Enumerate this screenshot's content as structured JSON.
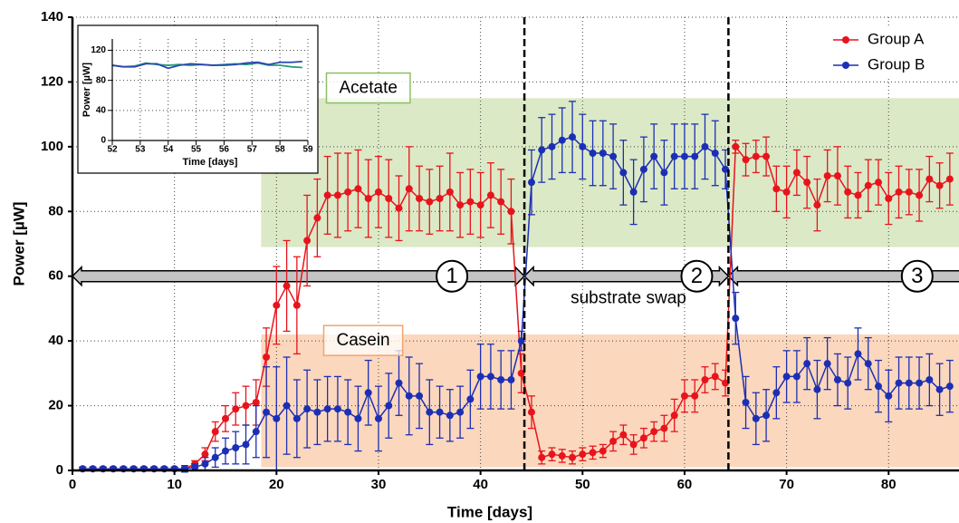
{
  "chart_data": [
    {
      "type": "line",
      "x_label": "Time [days]",
      "y_label": "Power [µW]",
      "xlim": [
        0,
        86.9
      ],
      "ylim": [
        0,
        140
      ],
      "xticks": [
        0,
        10,
        20,
        30,
        40,
        50,
        60,
        70,
        80
      ],
      "yticks": [
        0,
        20,
        40,
        60,
        80,
        100,
        120,
        140
      ],
      "grid": true,
      "legend": "upper right",
      "x": [
        1,
        2,
        3,
        4,
        5,
        6,
        7,
        8,
        9,
        10,
        11,
        12,
        13,
        14,
        15,
        16,
        17,
        18,
        19,
        20,
        21,
        22,
        23,
        24,
        25,
        26,
        27,
        28,
        29,
        30,
        31,
        32,
        33,
        34,
        35,
        36,
        37,
        38,
        39,
        40,
        41,
        42,
        43,
        44,
        45,
        46,
        47,
        48,
        49,
        50,
        51,
        52,
        53,
        54,
        55,
        56,
        57,
        58,
        59,
        60,
        61,
        62,
        63,
        64,
        65,
        66,
        67,
        68,
        69,
        70,
        71,
        72,
        73,
        74,
        75,
        76,
        77,
        78,
        79,
        80,
        81,
        82,
        83,
        84,
        85,
        86
      ],
      "series": [
        {
          "name": "Group A",
          "color": "#e8141c",
          "values": [
            0.5,
            0.5,
            0.5,
            0.5,
            0.5,
            0.5,
            0.5,
            0.5,
            0.5,
            0.5,
            0.5,
            2,
            5,
            12,
            16,
            19,
            20,
            21,
            35,
            51,
            57,
            51,
            71,
            78,
            85,
            85,
            86,
            87,
            84,
            86,
            84,
            81,
            87,
            84,
            83,
            84,
            86,
            82,
            83,
            82,
            85,
            83,
            80,
            30,
            18,
            4,
            5,
            4.5,
            4,
            5,
            5.5,
            6,
            9,
            11,
            8,
            10,
            12,
            13,
            17,
            23,
            23,
            28,
            29,
            27,
            100,
            96,
            97,
            97,
            87,
            86,
            92,
            89,
            82,
            91,
            91,
            86,
            85,
            88,
            89,
            84,
            86,
            86,
            85,
            90,
            88,
            90
          ],
          "errors": [
            0.5,
            0.5,
            0.5,
            0.5,
            0.5,
            0.5,
            0.5,
            0.5,
            0.5,
            0.5,
            0.5,
            1,
            2,
            3,
            4,
            5,
            6,
            7,
            9,
            12,
            14,
            15,
            14,
            12,
            12,
            13,
            12,
            12,
            12,
            11,
            12,
            10,
            13,
            10,
            10,
            10,
            12,
            10,
            10,
            10,
            10,
            10,
            10,
            6,
            5,
            2,
            2,
            2,
            2,
            2,
            2,
            2,
            3,
            3,
            3,
            3,
            3,
            4,
            5,
            5,
            5,
            4,
            4,
            4,
            2,
            5,
            5,
            6,
            7,
            8,
            7,
            8,
            8,
            8,
            9,
            8,
            7,
            8,
            7,
            8,
            8,
            7,
            8,
            7,
            7,
            8
          ]
        },
        {
          "name": "Group B",
          "color": "#1c2fb4",
          "values": [
            0.5,
            0.5,
            0.5,
            0.5,
            0.5,
            0.5,
            0.5,
            0.5,
            0.5,
            0.5,
            0.5,
            1,
            2,
            4,
            6,
            7,
            8,
            12,
            18,
            16,
            20,
            16,
            19,
            18,
            19,
            19,
            18,
            16,
            24,
            16,
            20,
            27,
            23,
            23,
            18,
            18,
            17,
            18,
            22,
            29,
            29,
            28,
            28,
            40,
            89,
            99,
            100,
            102,
            103,
            100,
            98,
            98,
            97,
            92,
            86,
            93,
            97,
            92,
            97,
            97,
            97,
            100,
            98,
            93,
            47,
            21,
            16,
            17,
            24,
            29,
            29,
            33,
            25,
            33,
            28,
            27,
            36,
            33,
            26,
            23,
            27,
            27,
            27,
            28,
            25,
            26
          ],
          "errors": [
            0.5,
            0.5,
            0.5,
            0.5,
            0.5,
            0.5,
            0.5,
            0.5,
            0.5,
            0.5,
            1,
            1,
            2,
            3,
            4,
            5,
            6,
            8,
            14,
            16,
            15,
            12,
            12,
            10,
            10,
            10,
            10,
            10,
            10,
            10,
            10,
            10,
            12,
            10,
            10,
            8,
            8,
            8,
            9,
            10,
            10,
            9,
            9,
            3,
            10,
            10,
            10,
            10,
            11,
            10,
            10,
            10,
            10,
            10,
            10,
            10,
            10,
            10,
            10,
            10,
            10,
            10,
            10,
            6,
            8,
            8,
            8,
            8,
            8,
            8,
            8,
            8,
            9,
            8,
            8,
            8,
            8,
            8,
            8,
            8,
            8,
            8,
            8,
            8,
            8,
            8
          ]
        }
      ],
      "regions": [
        {
          "label": "Acetate",
          "x": [
            18.5,
            86.9
          ],
          "y": [
            69,
            115
          ],
          "color": "#dbe9c6",
          "border": "#8cc063",
          "label_x": 29,
          "label_y": 118
        },
        {
          "label": "Casein",
          "x": [
            18.5,
            86.9
          ],
          "y": [
            1,
            42
          ],
          "color": "#fbd7bd",
          "border": "#f3a36d",
          "label_x": 28.5,
          "label_y": 40
        }
      ],
      "vlines": [
        44.3,
        64.3
      ],
      "phases": [
        {
          "label": "1",
          "x": [
            0,
            44.3
          ],
          "label_x": 37.2
        },
        {
          "label": "2",
          "x": [
            44.3,
            64.3
          ],
          "label_x": 61.2
        },
        {
          "label": "3",
          "x": [
            64.3,
            88.5
          ],
          "label_x": 82.8
        }
      ],
      "phase_y": 60,
      "annotation": {
        "text": "substrate swap",
        "x": 54.5,
        "y": 53
      }
    },
    {
      "type": "line",
      "x_label": "Time [days]",
      "y_label": "Power [µW]",
      "xlim": [
        52,
        59
      ],
      "ylim": [
        0,
        135
      ],
      "xticks": [
        52,
        53,
        54,
        55,
        56,
        57,
        58,
        59
      ],
      "yticks": [
        0,
        40,
        80,
        120
      ],
      "grid": true,
      "x": [
        52,
        52.4,
        52.8,
        53.2,
        53.6,
        54,
        54.4,
        54.8,
        55.2,
        55.6,
        56,
        56.4,
        56.8,
        57.2,
        57.6,
        58,
        58.4,
        58.8
      ],
      "series": [
        {
          "color": "#25a276",
          "values": [
            100,
            98,
            99,
            103,
            101,
            100,
            101,
            100,
            101,
            100,
            101,
            102,
            101,
            103,
            100,
            100,
            98,
            97
          ]
        },
        {
          "color": "#2a45b0",
          "values": [
            100,
            98,
            98,
            102,
            102,
            96,
            100,
            102,
            101,
            100,
            100,
            101,
            103,
            104,
            101,
            104,
            104,
            105
          ]
        }
      ]
    }
  ]
}
